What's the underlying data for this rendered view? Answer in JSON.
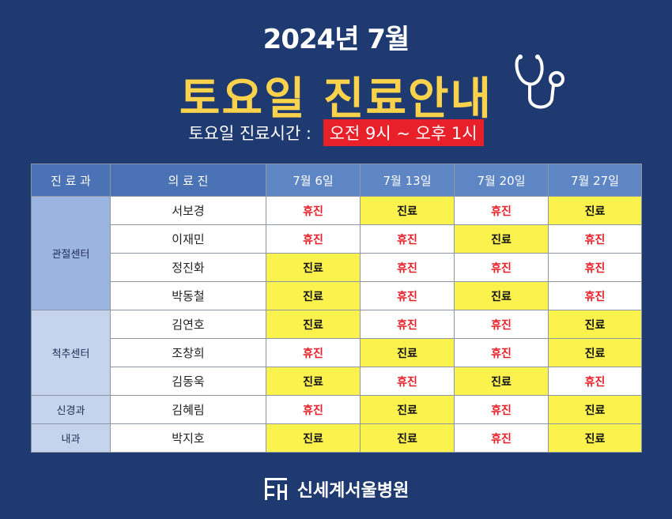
{
  "header": {
    "year_month": "2024년 7월",
    "title": "토요일 진료안내",
    "hours_label": "토요일 진료시간 :",
    "hours_value": "오전 9시 ~ 오후 1시"
  },
  "colors": {
    "background": "#1f3a70",
    "title": "#fbd24b",
    "open": "#fbf24d",
    "closed_text": "#e8202a",
    "header_cell": "#5e86c4"
  },
  "table": {
    "columns": [
      "진 료 과",
      "의 료 진",
      "7월 6일",
      "7월 13일",
      "7월 20일",
      "7월 27일"
    ],
    "departments": [
      {
        "name": "관절센터",
        "doctors": [
          {
            "name": "서보경",
            "schedule": [
              "휴진",
              "진료",
              "휴진",
              "진료"
            ]
          },
          {
            "name": "이재민",
            "schedule": [
              "휴진",
              "휴진",
              "진료",
              "휴진"
            ]
          },
          {
            "name": "정진화",
            "schedule": [
              "진료",
              "휴진",
              "휴진",
              "휴진"
            ]
          },
          {
            "name": "박동철",
            "schedule": [
              "진료",
              "휴진",
              "진료",
              "휴진"
            ]
          }
        ]
      },
      {
        "name": "척추센터",
        "doctors": [
          {
            "name": "김연호",
            "schedule": [
              "진료",
              "휴진",
              "휴진",
              "진료"
            ]
          },
          {
            "name": "조창희",
            "schedule": [
              "휴진",
              "진료",
              "휴진",
              "진료"
            ]
          },
          {
            "name": "김동욱",
            "schedule": [
              "진료",
              "휴진",
              "진료",
              "휴진"
            ]
          }
        ]
      },
      {
        "name": "신경과",
        "doctors": [
          {
            "name": "김혜림",
            "schedule": [
              "휴진",
              "진료",
              "휴진",
              "진료"
            ]
          }
        ]
      },
      {
        "name": "내과",
        "doctors": [
          {
            "name": "박지호",
            "schedule": [
              "진료",
              "진료",
              "휴진",
              "진료"
            ]
          }
        ]
      }
    ]
  },
  "footer": {
    "logo_icon": "hospital-logo-icon",
    "hospital_name": "신세계서울병원"
  }
}
